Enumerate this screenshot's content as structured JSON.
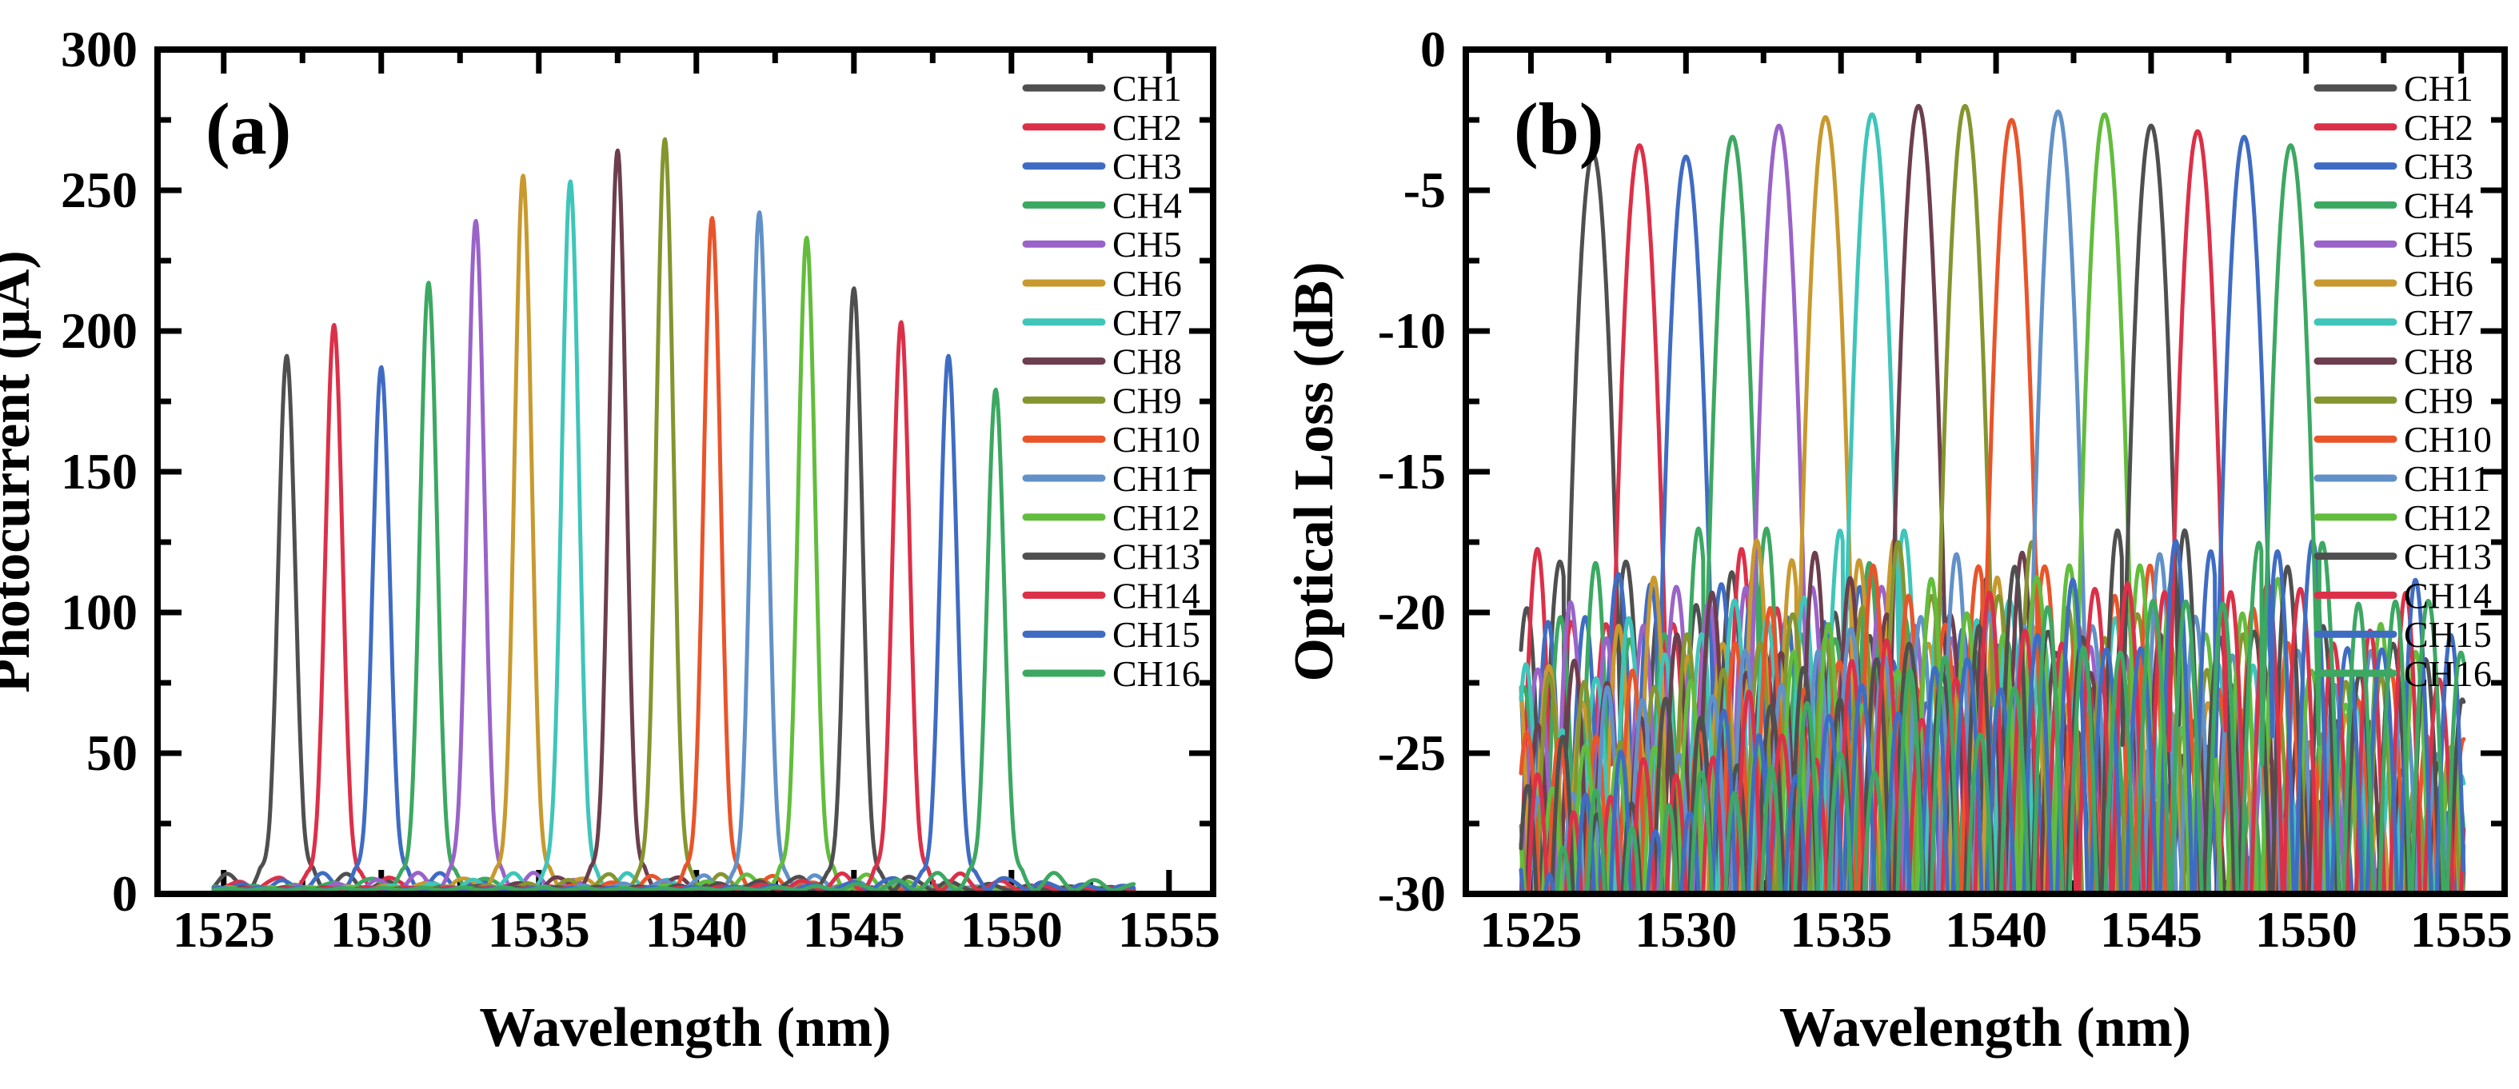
{
  "figure": {
    "background": "#ffffff",
    "panel_tags": [
      "(a)",
      "(b)"
    ]
  },
  "chart_data": [
    {
      "type": "line",
      "panel_tag": "(a)",
      "xlabel": "Wavelength (nm)",
      "ylabel": "Photocurrent (μA)",
      "xlim": [
        1522.9,
        1556.4
      ],
      "ylim": [
        0,
        300
      ],
      "xticks": [
        1525,
        1530,
        1535,
        1540,
        1545,
        1550,
        1555
      ],
      "yticks": [
        0,
        50,
        100,
        150,
        200,
        250,
        300
      ],
      "x_minor_step": 2.5,
      "y_minor_step": 25,
      "grid": false,
      "legend_position": "inside-right",
      "kind": "photocurrent",
      "x_data_range": [
        1524.68,
        1553.9
      ],
      "channel_spacing_nm": 1.5,
      "baseline_uA": 1.2,
      "sidelobe_max_uA": 8,
      "series": [
        {
          "name": "CH1",
          "color": "#4f4f4f",
          "center_nm": 1527.0,
          "peak": 190
        },
        {
          "name": "CH2",
          "color": "#dc3048",
          "center_nm": 1528.5,
          "peak": 201
        },
        {
          "name": "CH3",
          "color": "#3f6cc3",
          "center_nm": 1530.0,
          "peak": 186
        },
        {
          "name": "CH4",
          "color": "#3ca862",
          "center_nm": 1531.5,
          "peak": 216
        },
        {
          "name": "CH5",
          "color": "#9a63c9",
          "center_nm": 1533.0,
          "peak": 238
        },
        {
          "name": "CH6",
          "color": "#c8992e",
          "center_nm": 1534.5,
          "peak": 254
        },
        {
          "name": "CH7",
          "color": "#3fc5ba",
          "center_nm": 1536.0,
          "peak": 252
        },
        {
          "name": "CH8",
          "color": "#6c3e4e",
          "center_nm": 1537.5,
          "peak": 263
        },
        {
          "name": "CH9",
          "color": "#85952f",
          "center_nm": 1539.0,
          "peak": 267
        },
        {
          "name": "CH10",
          "color": "#e9542a",
          "center_nm": 1540.5,
          "peak": 239
        },
        {
          "name": "CH11",
          "color": "#6191c8",
          "center_nm": 1542.0,
          "peak": 241
        },
        {
          "name": "CH12",
          "color": "#62bd3c",
          "center_nm": 1543.5,
          "peak": 232
        },
        {
          "name": "CH13",
          "color": "#4f4f4f",
          "center_nm": 1545.0,
          "peak": 214
        },
        {
          "name": "CH14",
          "color": "#dc3048",
          "center_nm": 1546.5,
          "peak": 202
        },
        {
          "name": "CH15",
          "color": "#3f6cc3",
          "center_nm": 1548.0,
          "peak": 190
        },
        {
          "name": "CH16",
          "color": "#3ca862",
          "center_nm": 1549.5,
          "peak": 178
        }
      ]
    },
    {
      "type": "line",
      "panel_tag": "(b)",
      "xlabel": "Wavelength (nm)",
      "ylabel": "Optical Loss (dB)",
      "xlim": [
        1522.9,
        1556.4
      ],
      "ylim": [
        -30,
        0
      ],
      "xticks": [
        1525,
        1530,
        1535,
        1540,
        1545,
        1550,
        1555
      ],
      "yticks": [
        0,
        -5,
        -10,
        -15,
        -20,
        -25,
        -30
      ],
      "x_minor_step": 2.5,
      "y_minor_step": 2.5,
      "grid": false,
      "legend_position": "inside-right",
      "kind": "loss",
      "x_data_range": [
        1524.68,
        1555.1
      ],
      "channel_spacing_nm": 1.5,
      "crosstalk_band_db": [
        -30,
        -17.5
      ],
      "series": [
        {
          "name": "CH1",
          "color": "#4f4f4f",
          "center_nm": 1527.0,
          "peak_db": -3.7
        },
        {
          "name": "CH2",
          "color": "#dc3048",
          "center_nm": 1528.5,
          "peak_db": -3.4
        },
        {
          "name": "CH3",
          "color": "#3f6cc3",
          "center_nm": 1530.0,
          "peak_db": -3.8
        },
        {
          "name": "CH4",
          "color": "#3ca862",
          "center_nm": 1531.5,
          "peak_db": -3.1
        },
        {
          "name": "CH5",
          "color": "#9a63c9",
          "center_nm": 1533.0,
          "peak_db": -2.7
        },
        {
          "name": "CH6",
          "color": "#c8992e",
          "center_nm": 1534.5,
          "peak_db": -2.4
        },
        {
          "name": "CH7",
          "color": "#3fc5ba",
          "center_nm": 1536.0,
          "peak_db": -2.3
        },
        {
          "name": "CH8",
          "color": "#6c3e4e",
          "center_nm": 1537.5,
          "peak_db": -2.0
        },
        {
          "name": "CH9",
          "color": "#85952f",
          "center_nm": 1539.0,
          "peak_db": -2.0
        },
        {
          "name": "CH10",
          "color": "#e9542a",
          "center_nm": 1540.5,
          "peak_db": -2.5
        },
        {
          "name": "CH11",
          "color": "#6191c8",
          "center_nm": 1542.0,
          "peak_db": -2.2
        },
        {
          "name": "CH12",
          "color": "#62bd3c",
          "center_nm": 1543.5,
          "peak_db": -2.3
        },
        {
          "name": "CH13",
          "color": "#4f4f4f",
          "center_nm": 1545.0,
          "peak_db": -2.7
        },
        {
          "name": "CH14",
          "color": "#dc3048",
          "center_nm": 1546.5,
          "peak_db": -2.9
        },
        {
          "name": "CH15",
          "color": "#3f6cc3",
          "center_nm": 1548.0,
          "peak_db": -3.1
        },
        {
          "name": "CH16",
          "color": "#3ca862",
          "center_nm": 1549.5,
          "peak_db": -3.4
        }
      ]
    }
  ]
}
